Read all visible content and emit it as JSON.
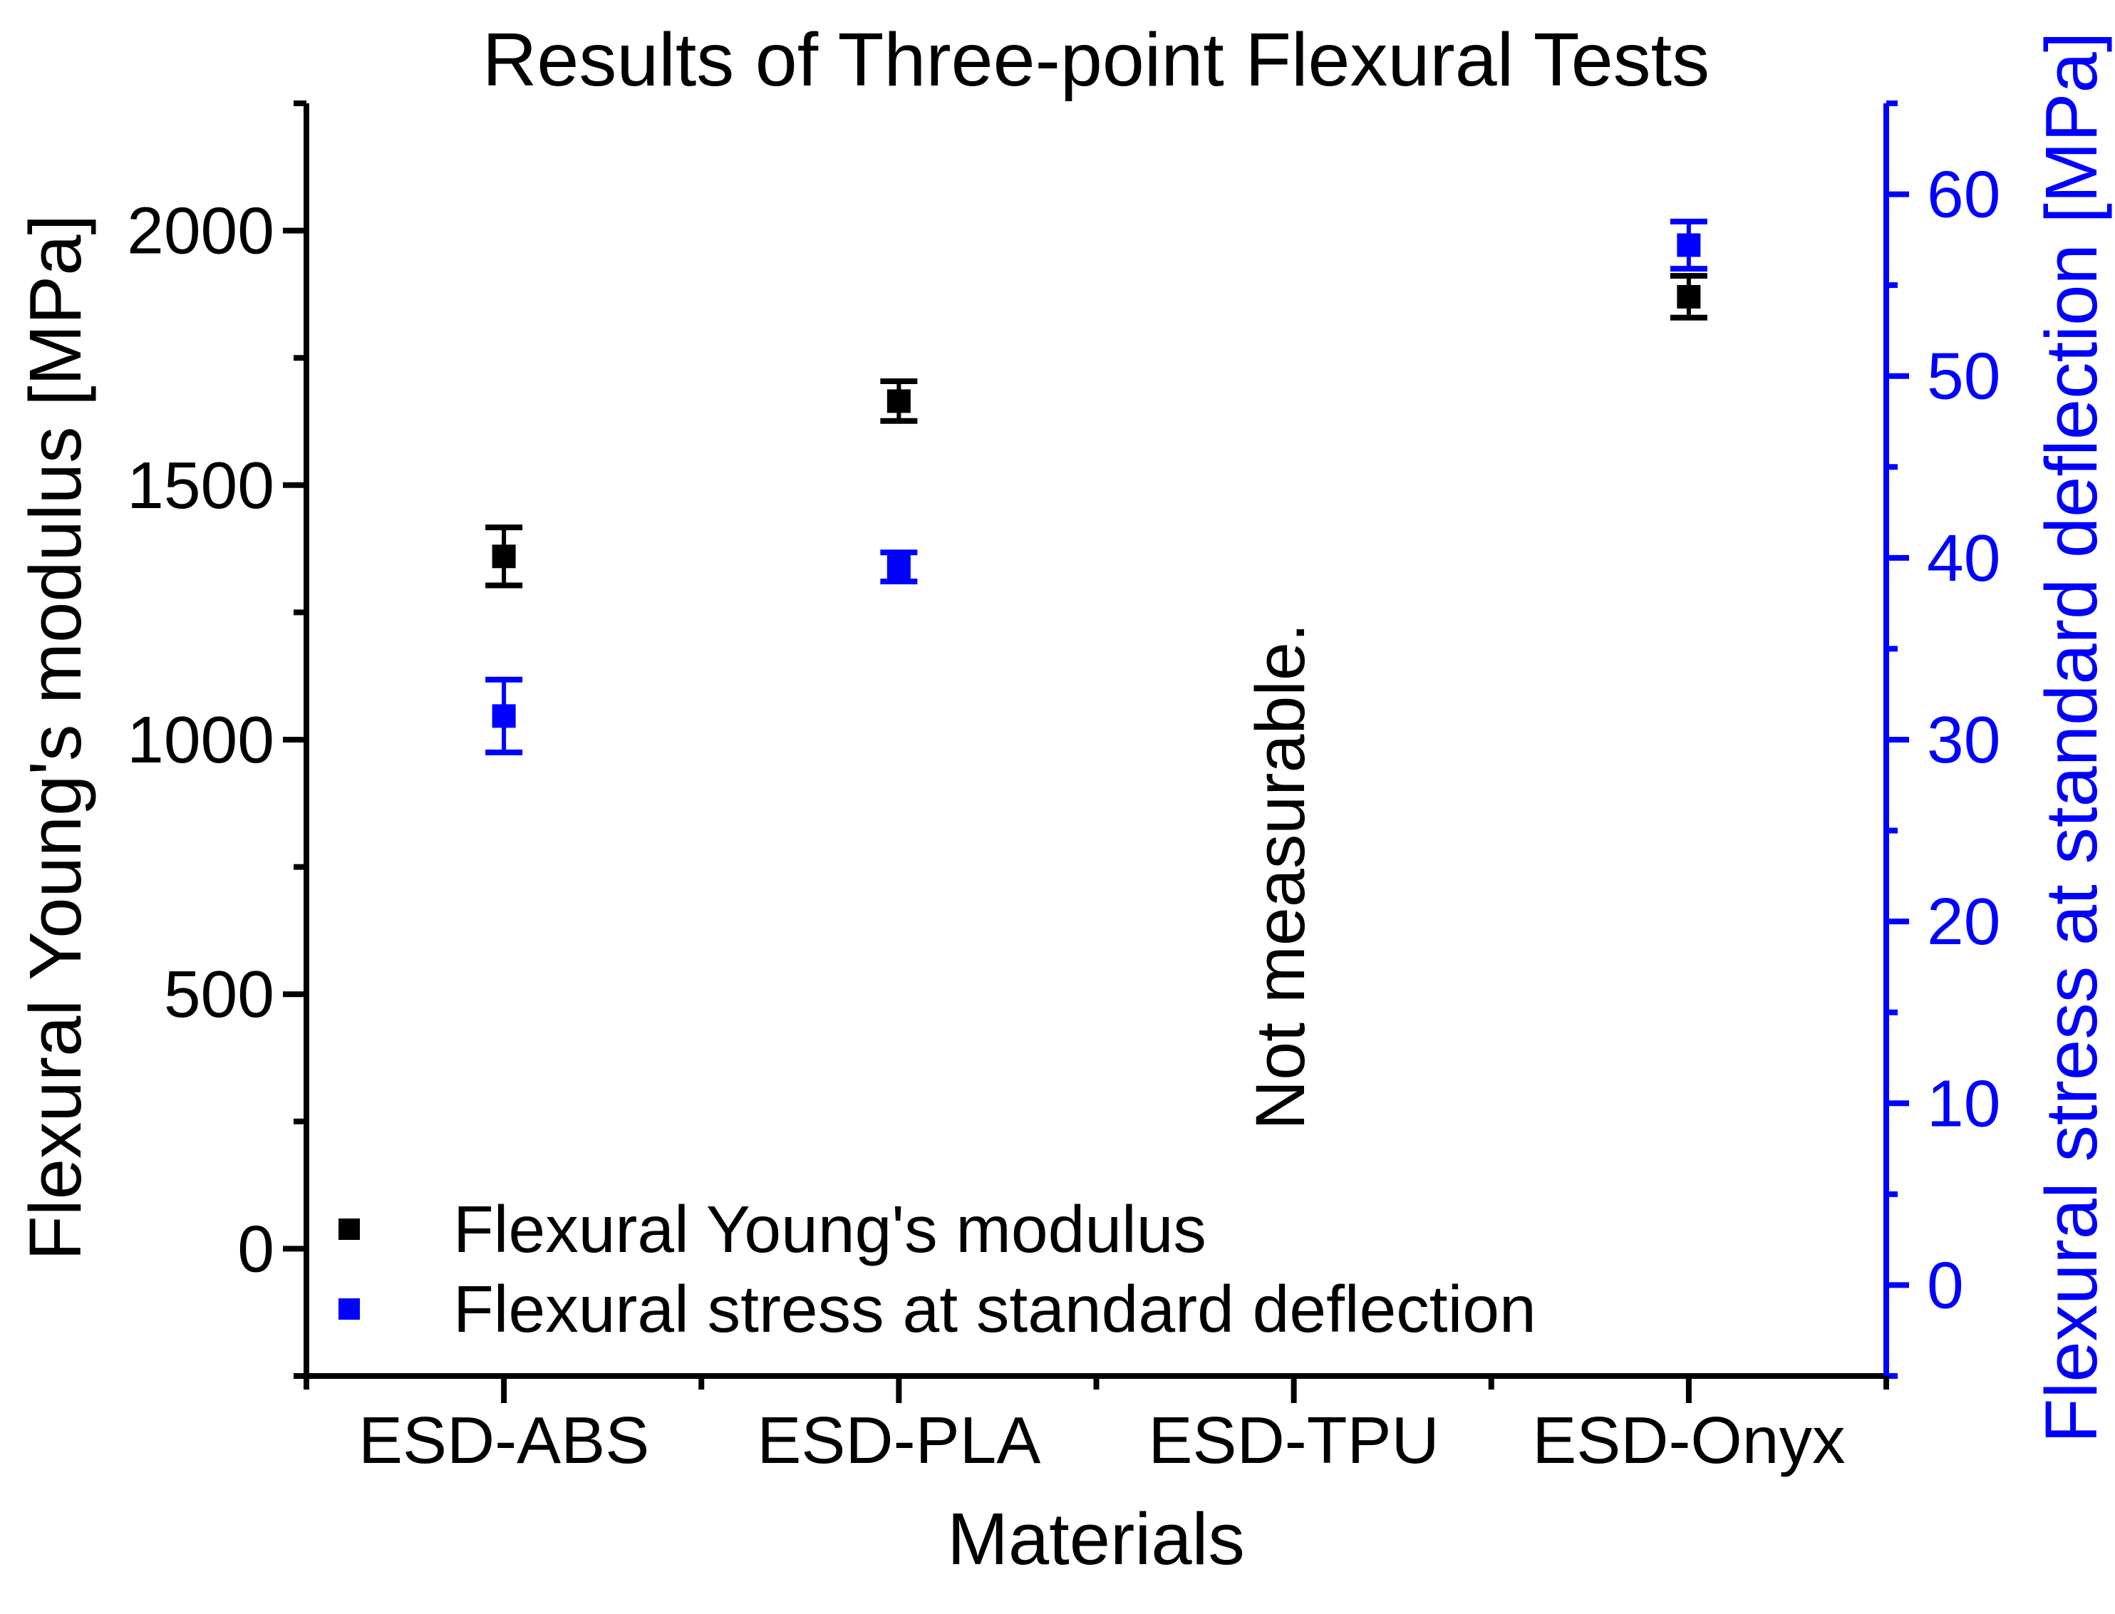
{
  "title": "Results of Three-point Flexural Tests",
  "xlabel": "Materials",
  "colors": {
    "black_series": "#000000",
    "blue_series": "#0000ff",
    "background": "#ffffff"
  },
  "chart_data": {
    "type": "scatter",
    "title": "Results of Three-point Flexural Tests",
    "xlabel": "Materials",
    "categories": [
      "ESD-ABS",
      "ESD-PLA",
      "ESD-TPU",
      "ESD-Onyx"
    ],
    "series": [
      {
        "name": "Flexural Young's modulus",
        "axis": "left",
        "color": "#000000",
        "marker": "square",
        "values": [
          1360,
          1665,
          null,
          1870
        ],
        "errors": [
          57,
          39,
          null,
          41
        ]
      },
      {
        "name": "Flexural stress at standard deflection",
        "axis": "right",
        "color": "#0000ff",
        "marker": "square",
        "values": [
          31.3,
          39.5,
          null,
          57.2
        ],
        "errors": [
          2.0,
          0.8,
          null,
          1.3
        ]
      }
    ],
    "y_left": {
      "label": "Flexural Young's modulus [MPa]",
      "color": "#000000",
      "lim": [
        -250,
        2250
      ],
      "major_ticks": [
        0,
        500,
        1000,
        1500,
        2000
      ],
      "minor_ticks": [
        -250,
        250,
        750,
        1250,
        1750,
        2250
      ]
    },
    "y_right": {
      "label": "Flexural stress at standard deflection [MPa]",
      "color": "#0000ff",
      "lim": [
        -5,
        65
      ],
      "major_ticks": [
        0,
        10,
        20,
        30,
        40,
        50,
        60
      ],
      "minor_ticks": [
        -5,
        5,
        15,
        25,
        35,
        45,
        55,
        65
      ]
    },
    "annotation": {
      "text": "Not measurable.",
      "category_index": 2
    },
    "legend_position": "lower left",
    "grid": false
  }
}
